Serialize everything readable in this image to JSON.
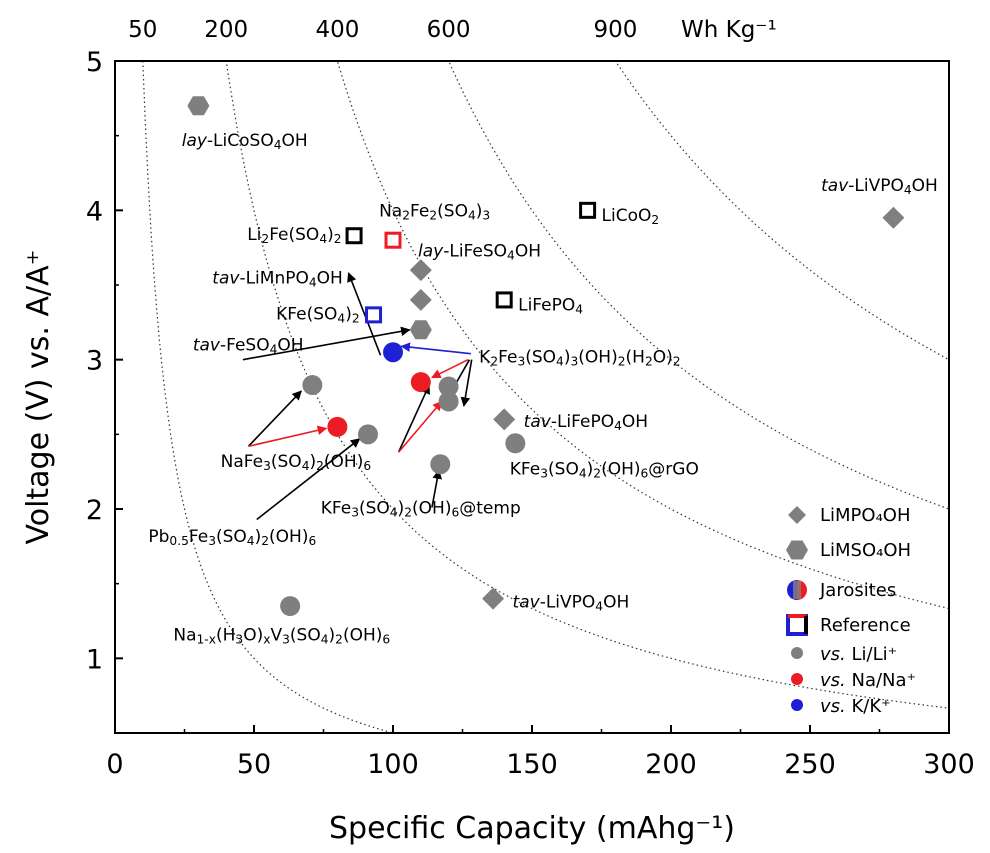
{
  "chart_data": {
    "type": "scatter",
    "title": "",
    "xlabel": "Specific Capacity (mAhg⁻¹)",
    "ylabel": "Voltage (V) vs. A/A⁺",
    "xlim": [
      0,
      300
    ],
    "ylim": [
      0.5,
      5
    ],
    "x_ticks": [
      0,
      50,
      100,
      150,
      200,
      250,
      300
    ],
    "y_ticks": [
      1,
      2,
      3,
      4,
      5
    ],
    "grid": false,
    "top_axis": {
      "unit_label": "Wh Kg⁻¹",
      "energy_density_ticks": [
        50,
        200,
        400,
        600,
        900
      ],
      "iso_energy_curves": [
        50,
        200,
        400,
        600,
        900
      ]
    },
    "colors": {
      "li": "#7f7f7f",
      "na": "#ed1c24",
      "k": "#1f1fd6",
      "reference_black": "#000000",
      "contour": "#333333"
    },
    "series": [
      {
        "name": "LiMPO₄OH",
        "marker": "diamond",
        "points": [
          {
            "x": 110,
            "y": 3.6,
            "ion": "li"
          },
          {
            "x": 110,
            "y": 3.4,
            "ion": "li"
          },
          {
            "x": 140,
            "y": 2.6,
            "ion": "li"
          },
          {
            "x": 136,
            "y": 1.4,
            "ion": "li"
          },
          {
            "x": 280,
            "y": 3.95,
            "ion": "li"
          }
        ]
      },
      {
        "name": "LiMSO₄OH",
        "marker": "hexagon",
        "points": [
          {
            "x": 30,
            "y": 4.7,
            "ion": "li"
          },
          {
            "x": 110,
            "y": 3.2,
            "ion": "li"
          }
        ]
      },
      {
        "name": "Jarosites",
        "marker": "circle",
        "points": [
          {
            "x": 100,
            "y": 3.05,
            "ion": "k"
          },
          {
            "x": 110,
            "y": 2.85,
            "ion": "na"
          },
          {
            "x": 80,
            "y": 2.55,
            "ion": "na"
          },
          {
            "x": 120,
            "y": 2.82,
            "ion": "li"
          },
          {
            "x": 120,
            "y": 2.72,
            "ion": "li"
          },
          {
            "x": 71,
            "y": 2.83,
            "ion": "li"
          },
          {
            "x": 91,
            "y": 2.5,
            "ion": "li"
          },
          {
            "x": 117,
            "y": 2.3,
            "ion": "li"
          },
          {
            "x": 144,
            "y": 2.44,
            "ion": "li"
          },
          {
            "x": 63,
            "y": 1.35,
            "ion": "li"
          }
        ]
      },
      {
        "name": "Reference",
        "marker": "square-open",
        "points": [
          {
            "x": 86,
            "y": 3.83,
            "ion": "reference_black"
          },
          {
            "x": 100,
            "y": 3.8,
            "ion": "na"
          },
          {
            "x": 93,
            "y": 3.3,
            "ion": "k"
          },
          {
            "x": 170,
            "y": 4.0,
            "ion": "reference_black"
          },
          {
            "x": 140,
            "y": 3.4,
            "ion": "reference_black"
          }
        ]
      }
    ],
    "annotations": [
      {
        "text_parts": [
          [
            "lay",
            "it"
          ],
          [
            "-LiCoSO",
            ""
          ],
          [
            "4",
            "sub"
          ],
          [
            "OH",
            ""
          ]
        ],
        "x": 24,
        "y": 4.43,
        "anchor": "start"
      },
      {
        "text_parts": [
          [
            "tav",
            "it"
          ],
          [
            "-LiVPO",
            ""
          ],
          [
            "4",
            "sub"
          ],
          [
            "OH",
            ""
          ]
        ],
        "x": 254,
        "y": 4.13,
        "anchor": "start"
      },
      {
        "text_parts": [
          [
            "Na",
            ""
          ],
          [
            "2",
            "sub"
          ],
          [
            "Fe",
            ""
          ],
          [
            "2",
            "sub"
          ],
          [
            "(SO",
            ""
          ],
          [
            "4",
            "sub"
          ],
          [
            ")",
            ""
          ],
          [
            "3",
            "sub"
          ]
        ],
        "x": 95,
        "y": 3.96,
        "anchor": "start"
      },
      {
        "text_parts": [
          [
            "Li",
            ""
          ],
          [
            "2",
            "sub"
          ],
          [
            "Fe(SO",
            ""
          ],
          [
            "4",
            "sub"
          ],
          [
            ")",
            ""
          ],
          [
            "2",
            "sub"
          ]
        ],
        "x": 81.5,
        "y": 3.8,
        "anchor": "end"
      },
      {
        "text_parts": [
          [
            "LiCoO",
            ""
          ],
          [
            "2",
            "sub"
          ]
        ],
        "x": 175,
        "y": 3.93,
        "anchor": "start"
      },
      {
        "text_parts": [
          [
            "lay",
            "it"
          ],
          [
            "-LiFeSO",
            ""
          ],
          [
            "4",
            "sub"
          ],
          [
            "OH",
            ""
          ]
        ],
        "x": 109,
        "y": 3.69,
        "anchor": "start"
      },
      {
        "text_parts": [
          [
            "tav",
            "it"
          ],
          [
            "-LiMnPO",
            ""
          ],
          [
            "4",
            "sub"
          ],
          [
            "OH",
            ""
          ]
        ],
        "x": 35,
        "y": 3.51,
        "anchor": "start"
      },
      {
        "text_parts": [
          [
            "LiFePO",
            ""
          ],
          [
            "4",
            "sub"
          ]
        ],
        "x": 145,
        "y": 3.33,
        "anchor": "start"
      },
      {
        "text_parts": [
          [
            "KFe(SO",
            ""
          ],
          [
            "4",
            "sub"
          ],
          [
            ")",
            ""
          ],
          [
            "2",
            "sub"
          ]
        ],
        "x": 88,
        "y": 3.27,
        "anchor": "end"
      },
      {
        "text_parts": [
          [
            "tav",
            "it"
          ],
          [
            "-FeSO",
            ""
          ],
          [
            "4",
            "sub"
          ],
          [
            "OH",
            ""
          ]
        ],
        "x": 28,
        "y": 3.06,
        "anchor": "start"
      },
      {
        "text_parts": [
          [
            "K",
            ""
          ],
          [
            "2",
            "sub"
          ],
          [
            "Fe",
            ""
          ],
          [
            "3",
            "sub"
          ],
          [
            "(SO",
            ""
          ],
          [
            "4",
            "sub"
          ],
          [
            ")",
            ""
          ],
          [
            "3",
            "sub"
          ],
          [
            "(OH)",
            ""
          ],
          [
            "2",
            "sub"
          ],
          [
            "(H",
            ""
          ],
          [
            "2",
            "sub"
          ],
          [
            "O)",
            ""
          ],
          [
            "2",
            "sub"
          ]
        ],
        "x": 131,
        "y": 2.98,
        "anchor": "start"
      },
      {
        "text_parts": [
          [
            "tav",
            "it"
          ],
          [
            "-LiFePO",
            ""
          ],
          [
            "4",
            "sub"
          ],
          [
            "OH",
            ""
          ]
        ],
        "x": 147,
        "y": 2.55,
        "anchor": "start"
      },
      {
        "text_parts": [
          [
            "NaFe",
            ""
          ],
          [
            "3",
            "sub"
          ],
          [
            "(SO",
            ""
          ],
          [
            "4",
            "sub"
          ],
          [
            ")",
            ""
          ],
          [
            "2",
            "sub"
          ],
          [
            "(OH)",
            ""
          ],
          [
            "6",
            "sub"
          ]
        ],
        "x": 38,
        "y": 2.28,
        "anchor": "start"
      },
      {
        "text_parts": [
          [
            "KFe",
            ""
          ],
          [
            "3",
            "sub"
          ],
          [
            "(SO",
            ""
          ],
          [
            "4",
            "sub"
          ],
          [
            ")",
            ""
          ],
          [
            "2",
            "sub"
          ],
          [
            "(OH)",
            ""
          ],
          [
            "6",
            "sub"
          ],
          [
            "@rGO",
            ""
          ]
        ],
        "x": 142,
        "y": 2.23,
        "anchor": "start"
      },
      {
        "text_parts": [
          [
            "KFe",
            ""
          ],
          [
            "3",
            "sub"
          ],
          [
            "(SO",
            ""
          ],
          [
            "4",
            "sub"
          ],
          [
            ")",
            ""
          ],
          [
            "2",
            "sub"
          ],
          [
            "(OH)",
            ""
          ],
          [
            "6",
            "sub"
          ],
          [
            "@temp",
            ""
          ]
        ],
        "x": 74,
        "y": 1.97,
        "anchor": "start"
      },
      {
        "text_parts": [
          [
            "Pb",
            ""
          ],
          [
            "0.5",
            "sub"
          ],
          [
            "Fe",
            ""
          ],
          [
            "3",
            "sub"
          ],
          [
            "(SO",
            ""
          ],
          [
            "4",
            "sub"
          ],
          [
            ")",
            ""
          ],
          [
            "2",
            "sub"
          ],
          [
            "(OH)",
            ""
          ],
          [
            "6",
            "sub"
          ]
        ],
        "x": 12,
        "y": 1.78,
        "anchor": "start"
      },
      {
        "text_parts": [
          [
            "tav",
            "it"
          ],
          [
            "-LiVPO",
            ""
          ],
          [
            "4",
            "sub"
          ],
          [
            "OH",
            ""
          ]
        ],
        "x": 143,
        "y": 1.34,
        "anchor": "start"
      },
      {
        "text_parts": [
          [
            "Na",
            ""
          ],
          [
            "1-x",
            "sub"
          ],
          [
            "(H",
            ""
          ],
          [
            "3",
            "sub"
          ],
          [
            "O)",
            ""
          ],
          [
            "x",
            "sub"
          ],
          [
            "V",
            ""
          ],
          [
            "3",
            "sub"
          ],
          [
            "(SO",
            ""
          ],
          [
            "4",
            "sub"
          ],
          [
            ")",
            ""
          ],
          [
            "2",
            "sub"
          ],
          [
            "(OH)",
            ""
          ],
          [
            "6",
            "sub"
          ]
        ],
        "x": 21,
        "y": 1.12,
        "anchor": "start"
      }
    ],
    "arrows": [
      {
        "from": [
          95.5,
          3.03
        ],
        "to": [
          84,
          3.58
        ],
        "color": "black"
      },
      {
        "from": [
          46,
          3.0
        ],
        "to": [
          106,
          3.2
        ],
        "color": "black"
      },
      {
        "from": [
          128,
          3.04
        ],
        "to": [
          103,
          3.09
        ],
        "color": "blue"
      },
      {
        "from": [
          127,
          3.0
        ],
        "to": [
          114,
          2.88
        ],
        "color": "red"
      },
      {
        "from": [
          127.5,
          3.0
        ],
        "to": [
          118,
          2.69
        ],
        "color": "black"
      },
      {
        "from": [
          128.3,
          3.0
        ],
        "to": [
          125.5,
          2.69
        ],
        "color": "black"
      },
      {
        "from": [
          48,
          2.42
        ],
        "to": [
          67,
          2.79
        ],
        "color": "black"
      },
      {
        "from": [
          48,
          2.42
        ],
        "to": [
          76,
          2.54
        ],
        "color": "red"
      },
      {
        "from": [
          102,
          2.38
        ],
        "to": [
          113,
          2.83
        ],
        "color": "black"
      },
      {
        "from": [
          102,
          2.38
        ],
        "to": [
          117.5,
          2.72
        ],
        "color": "red"
      },
      {
        "from": [
          51,
          1.93
        ],
        "to": [
          88,
          2.47
        ],
        "color": "black"
      },
      {
        "from": [
          114,
          2.01
        ],
        "to": [
          116.5,
          2.26
        ],
        "color": "black"
      }
    ],
    "legend": {
      "placement": "bottom-right",
      "entries": [
        {
          "label": "LiMPO₄OH",
          "marker": "diamond"
        },
        {
          "label": "LiMSO₄OH",
          "marker": "hexagon"
        },
        {
          "label": "Jarosites",
          "marker": "circle-multi"
        },
        {
          "label": "Reference",
          "marker": "square-multi"
        },
        {
          "label_parts": [
            [
              "vs.",
              "it"
            ],
            [
              " Li/Li⁺",
              ""
            ]
          ],
          "marker": "dot",
          "ion": "li"
        },
        {
          "label_parts": [
            [
              "vs.",
              "it"
            ],
            [
              " Na/Na⁺",
              ""
            ]
          ],
          "marker": "dot",
          "ion": "na"
        },
        {
          "label_parts": [
            [
              "vs.",
              "it"
            ],
            [
              " K/K⁺",
              ""
            ]
          ],
          "marker": "dot",
          "ion": "k"
        }
      ]
    }
  }
}
